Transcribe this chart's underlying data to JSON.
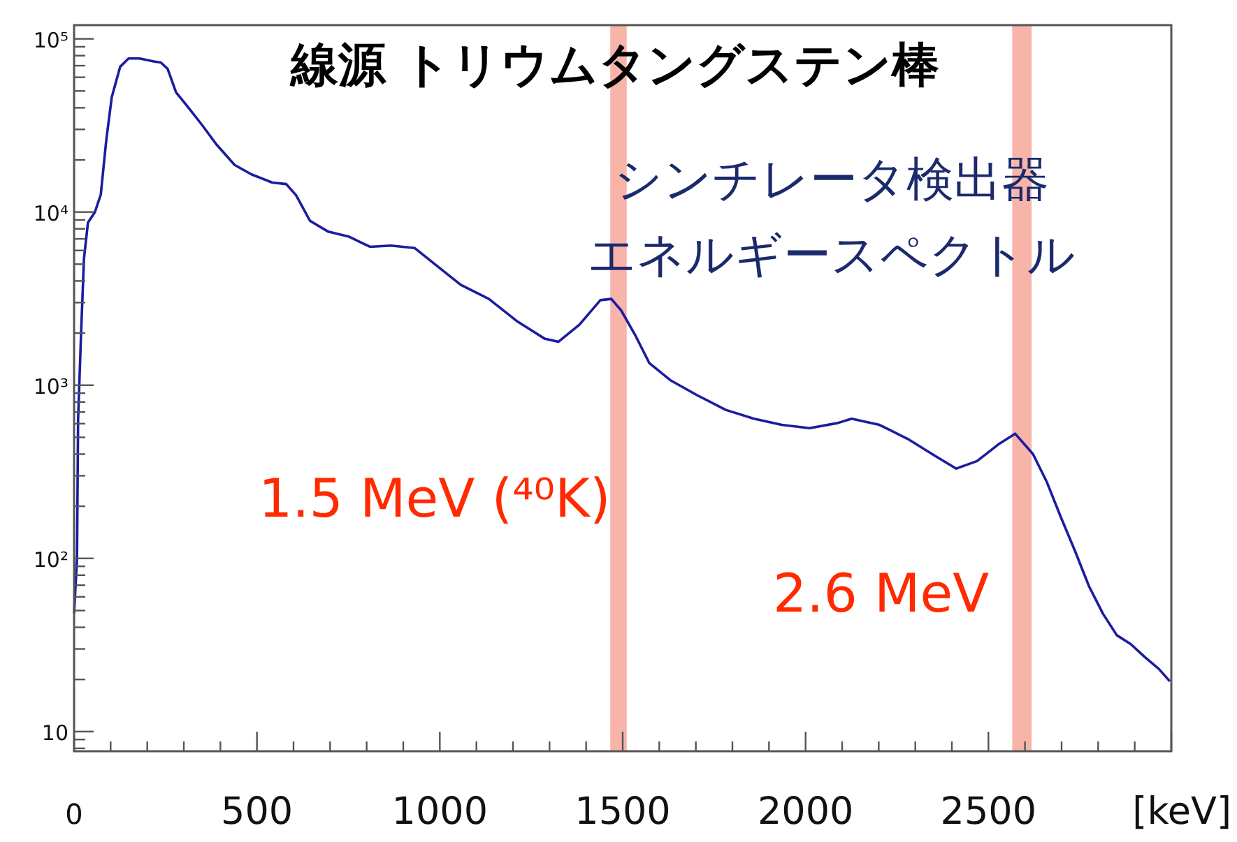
{
  "chart_data": {
    "type": "line",
    "title": "線源 トリウムタングステン棒",
    "subtitle": "シンチレータ検出器",
    "xlabel": "[keV]",
    "log": "y",
    "xlim": [
      0,
      3000
    ],
    "ylim": [
      7.7,
      120000
    ],
    "xticks": [
      0,
      500,
      1000,
      1500,
      2000,
      2500
    ],
    "yticks": [
      {
        "value": 10,
        "label": "10"
      },
      {
        "value": 100,
        "label": "10²"
      },
      {
        "value": 1000,
        "label": "10³"
      },
      {
        "value": 10000,
        "label": "10⁴"
      },
      {
        "value": 100000,
        "label": "10⁵"
      }
    ],
    "line_style": "solid",
    "bands": [
      {
        "axis": "x",
        "from": 1466,
        "to": 1511,
        "color": "#f9b4aa"
      },
      {
        "axis": "x",
        "from": 2565,
        "to": 2618,
        "color": "#f9b4aa"
      }
    ],
    "annotations": [
      "エネルギースペクトル",
      "1.5 MeV (⁴⁰K)",
      "2.6 MeV"
    ],
    "series": [
      {
        "color": "#1c1ca0",
        "x": [
          0,
          8,
          11,
          19,
          27,
          38,
          57,
          73,
          88,
          103,
          126,
          149,
          179,
          218,
          237,
          256,
          279,
          313,
          351,
          389,
          439,
          485,
          542,
          580,
          607,
          645,
          695,
          752,
          809,
          866,
          931,
          981,
          1057,
          1134,
          1210,
          1286,
          1324,
          1382,
          1439,
          1469,
          1496,
          1534,
          1573,
          1630,
          1706,
          1782,
          1859,
          1935,
          2011,
          2088,
          2126,
          2202,
          2279,
          2355,
          2412,
          2469,
          2527,
          2573,
          2622,
          2660,
          2698,
          2737,
          2775,
          2813,
          2851,
          2889,
          2927,
          2966,
          2996
        ],
        "values": [
          48,
          100,
          640,
          1950,
          5370,
          8700,
          10000,
          12600,
          26000,
          46000,
          69000,
          77000,
          77000,
          74000,
          73000,
          67000,
          49000,
          40000,
          31600,
          24600,
          18700,
          16500,
          14800,
          14500,
          12500,
          8900,
          7700,
          7200,
          6300,
          6400,
          6200,
          5100,
          3800,
          3150,
          2350,
          1860,
          1780,
          2240,
          3100,
          3150,
          2700,
          1950,
          1340,
          1070,
          870,
          720,
          640,
          590,
          565,
          605,
          640,
          590,
          490,
          390,
          330,
          365,
          455,
          525,
          400,
          275,
          173,
          110,
          69,
          48,
          36,
          32,
          27,
          23,
          19.5
        ]
      }
    ]
  }
}
